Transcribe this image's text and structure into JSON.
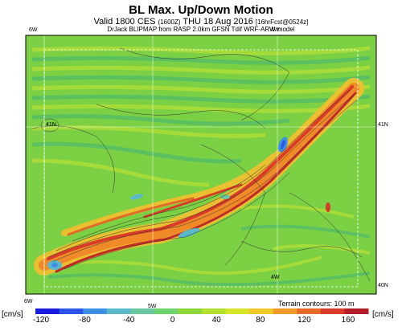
{
  "header": {
    "title": "BL Max. Up/Down Motion",
    "valid_main": "Valid 1800 CES",
    "valid_small": "(1600Z)",
    "valid_date": "THU 18 Aug 2016",
    "forecast": "[16hrFcst@0524z]",
    "credit": "DrJack BLIPMAP from RASP 2.0km GFSN Tdif WRF-ARW model"
  },
  "map": {
    "grid_labels": {
      "top_left": "6W",
      "top_right": "4W",
      "right_upper": "41N",
      "left_mid": "41N",
      "bottom_mid": "4W",
      "right_lower": "40N",
      "bottom_left": "6W",
      "bottom_center": "5W"
    },
    "terrain_note": "Terrain contours: 100 m"
  },
  "colorbar": {
    "units_left": "[cm/s]",
    "units_right": "[cm/s]",
    "ticks": [
      "-120",
      "-80",
      "-40",
      "0",
      "40",
      "80",
      "120",
      "160"
    ],
    "colors": [
      "#1a1adc",
      "#2a55e8",
      "#3d8fe6",
      "#5ab8c8",
      "#68c8a0",
      "#6ed46e",
      "#8cd838",
      "#b0e030",
      "#d8e428",
      "#f0c828",
      "#f09a28",
      "#e86a28",
      "#d83c28",
      "#b41e28"
    ]
  }
}
